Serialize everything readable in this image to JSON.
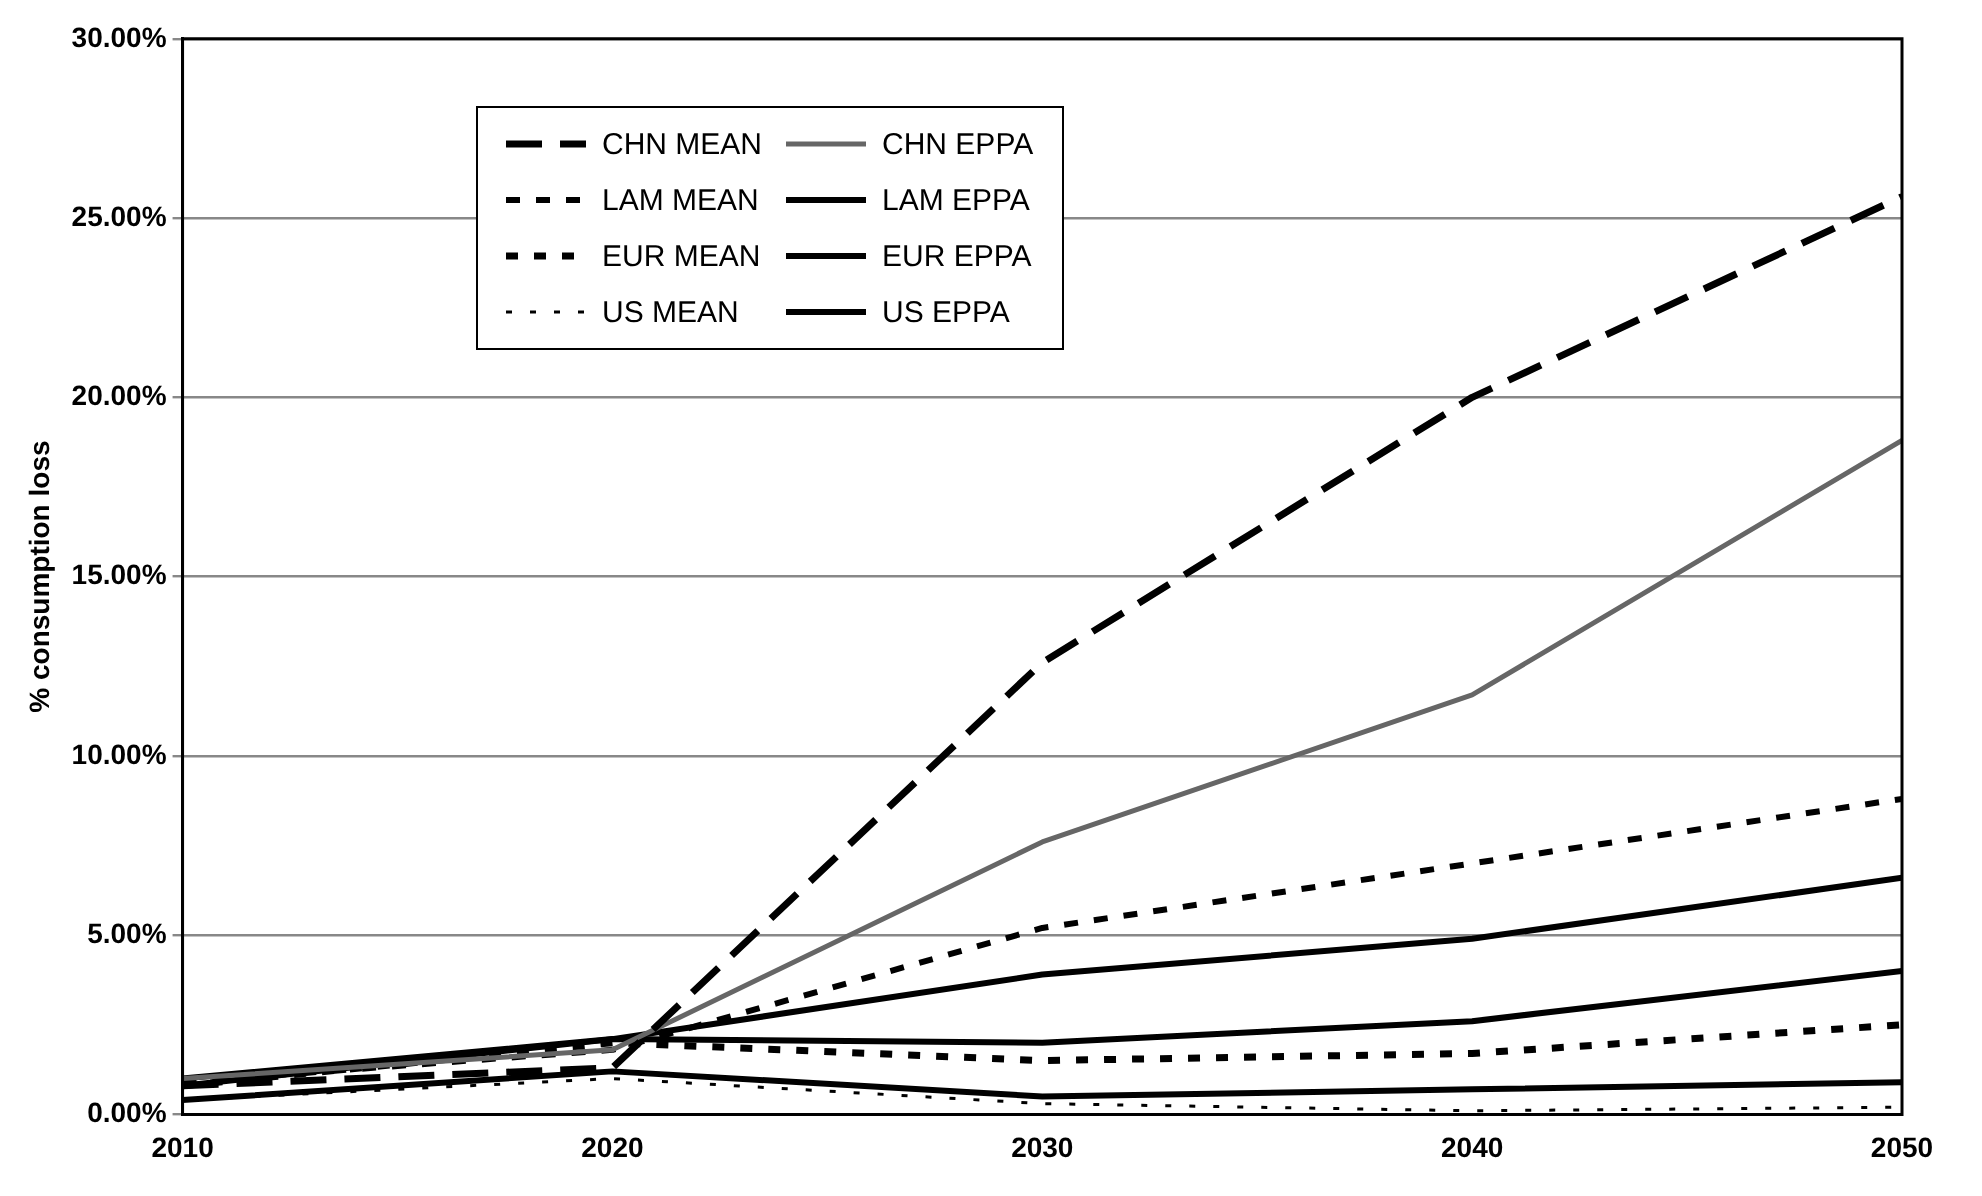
{
  "chart_data": {
    "type": "line",
    "ylabel": "% consumption loss",
    "x": [
      2010,
      2020,
      2030,
      2040,
      2050
    ],
    "xlim": [
      2010,
      2050
    ],
    "xticks": [
      2010,
      2020,
      2030,
      2040,
      2050
    ],
    "ylim": [
      0,
      30
    ],
    "yticks": [
      {
        "value": 0,
        "label": "0.00%"
      },
      {
        "value": 5,
        "label": "5.00%"
      },
      {
        "value": 10,
        "label": "10.00%"
      },
      {
        "value": 15,
        "label": "15.00%"
      },
      {
        "value": 20,
        "label": "20.00%"
      },
      {
        "value": 25,
        "label": "25.00%"
      },
      {
        "value": 30,
        "label": "30.00%"
      }
    ],
    "grid": "y",
    "legend": "top left",
    "marker": "none",
    "series": [
      {
        "name": "CHN MEAN",
        "color": "#000000",
        "line_style": "dashed",
        "values": [
          0.8,
          1.3,
          12.6,
          20.0,
          25.6
        ]
      },
      {
        "name": "CHN EPPA",
        "color": "#666666",
        "line_style": "solid",
        "values": [
          1.0,
          1.8,
          7.6,
          11.7,
          18.8
        ]
      },
      {
        "name": "LAM MEAN",
        "color": "#000000",
        "line_style": "dashed",
        "values": [
          0.9,
          1.8,
          5.2,
          7.0,
          8.8
        ]
      },
      {
        "name": "LAM EPPA",
        "color": "#000000",
        "line_style": "solid",
        "values": [
          1.0,
          2.1,
          3.9,
          4.9,
          6.6
        ]
      },
      {
        "name": "EUR MEAN",
        "color": "#000000",
        "line_style": "dashed",
        "values": [
          0.8,
          2.0,
          1.5,
          1.7,
          2.5
        ]
      },
      {
        "name": "EUR EPPA",
        "color": "#000000",
        "line_style": "solid",
        "values": [
          0.8,
          2.1,
          2.0,
          2.6,
          4.0
        ]
      },
      {
        "name": "US MEAN",
        "color": "#000000",
        "line_style": "dashed",
        "values": [
          0.4,
          1.0,
          0.3,
          0.1,
          0.2
        ]
      },
      {
        "name": "US EPPA",
        "color": "#000000",
        "line_style": "solid",
        "values": [
          0.4,
          1.2,
          0.5,
          0.7,
          0.9
        ]
      }
    ]
  }
}
